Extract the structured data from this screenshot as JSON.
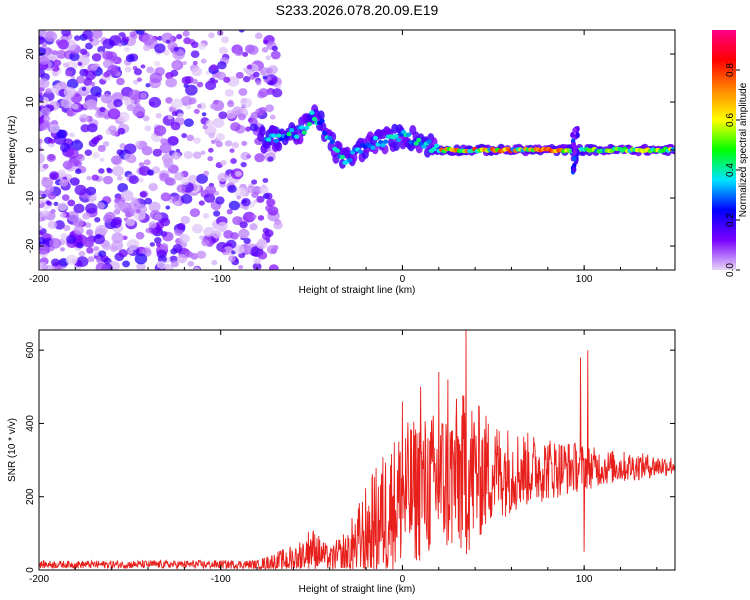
{
  "title": "S233.2026.078.20.09.E19",
  "chart_data": [
    {
      "type": "heatmap",
      "xlabel": "Height of straight line (km)",
      "ylabel": "Frequency (Hz)",
      "xlim": [
        -200,
        150
      ],
      "ylim": [
        -25,
        25
      ],
      "x_ticks": [
        -200,
        -100,
        0,
        100
      ],
      "x_tick_labels": [
        "-200",
        "-100",
        "0",
        "100"
      ],
      "y_ticks": [
        -20,
        -10,
        0,
        10,
        20
      ],
      "y_tick_labels": [
        "-20",
        "-10",
        "0",
        "10",
        "20"
      ],
      "ridge": [
        {
          "x": -75,
          "y": 2
        },
        {
          "x": -65,
          "y": 3
        },
        {
          "x": -55,
          "y": 4
        },
        {
          "x": -50,
          "y": 7
        },
        {
          "x": -45,
          "y": 6
        },
        {
          "x": -40,
          "y": 2
        },
        {
          "x": -35,
          "y": -1
        },
        {
          "x": -30,
          "y": -2
        },
        {
          "x": -20,
          "y": 1
        },
        {
          "x": -10,
          "y": 2
        },
        {
          "x": 0,
          "y": 3
        },
        {
          "x": 10,
          "y": 2
        },
        {
          "x": 20,
          "y": 0
        },
        {
          "x": 30,
          "y": 0
        },
        {
          "x": 50,
          "y": 0
        },
        {
          "x": 80,
          "y": 0
        },
        {
          "x": 100,
          "y": 0
        },
        {
          "x": 150,
          "y": 0
        }
      ],
      "colorbar": {
        "label": "Normalized spectral amplitude",
        "ticks": [
          0.0,
          0.2,
          0.4,
          0.6,
          0.8
        ],
        "tick_labels": [
          "0.0",
          "0.2",
          "0.4",
          "0.6",
          "0.8"
        ],
        "range": [
          0,
          0.96
        ],
        "colors": [
          "#e8d6f7",
          "#7a00ff",
          "#0000ff",
          "#00e5ff",
          "#00ff00",
          "#ffff00",
          "#ff8800",
          "#ff0000",
          "#ff0088"
        ]
      }
    },
    {
      "type": "line",
      "xlabel": "Height of straight line (km)",
      "ylabel": "SNR (10 * v/v)",
      "xlim": [
        -200,
        150
      ],
      "ylim": [
        0,
        655
      ],
      "x_ticks": [
        -200,
        -100,
        0,
        100
      ],
      "x_tick_labels": [
        "-200",
        "-100",
        "0",
        "100"
      ],
      "y_ticks": [
        0,
        200,
        400,
        600
      ],
      "y_tick_labels": [
        "0",
        "200",
        "400",
        "600"
      ],
      "series": [
        {
          "name": "SNR",
          "color": "#e8201c",
          "envelope": [
            {
              "x": -200,
              "base": 15,
              "amp": 10
            },
            {
              "x": -80,
              "base": 15,
              "amp": 12
            },
            {
              "x": -60,
              "base": 30,
              "amp": 40
            },
            {
              "x": -50,
              "base": 60,
              "amp": 60
            },
            {
              "x": -40,
              "base": 30,
              "amp": 30
            },
            {
              "x": -30,
              "base": 40,
              "amp": 80
            },
            {
              "x": -20,
              "base": 100,
              "amp": 130
            },
            {
              "x": -10,
              "base": 150,
              "amp": 180
            },
            {
              "x": 0,
              "base": 200,
              "amp": 200
            },
            {
              "x": 20,
              "base": 240,
              "amp": 200
            },
            {
              "x": 35,
              "base": 260,
              "amp": 230
            },
            {
              "x": 50,
              "base": 270,
              "amp": 140
            },
            {
              "x": 70,
              "base": 275,
              "amp": 100
            },
            {
              "x": 95,
              "base": 280,
              "amp": 70
            },
            {
              "x": 110,
              "base": 280,
              "amp": 50
            },
            {
              "x": 150,
              "base": 285,
              "amp": 25
            }
          ],
          "spikes": [
            {
              "x": 0,
              "value": 460
            },
            {
              "x": 10,
              "value": 500
            },
            {
              "x": 20,
              "value": 540
            },
            {
              "x": 25,
              "value": 520
            },
            {
              "x": 35,
              "value": 655
            },
            {
              "x": 98,
              "value": 580
            },
            {
              "x": 100,
              "value": 50
            },
            {
              "x": 102,
              "value": 600
            }
          ]
        }
      ]
    }
  ]
}
